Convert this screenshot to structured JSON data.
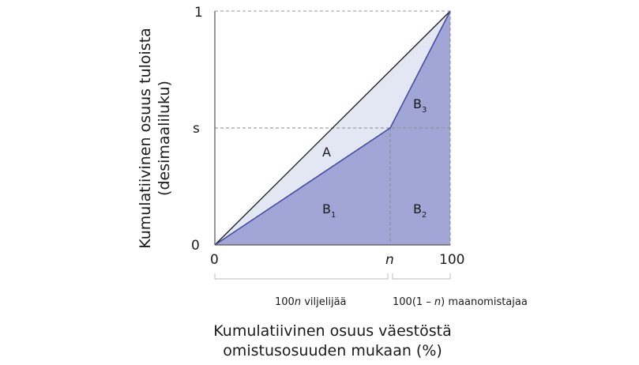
{
  "y_axis": {
    "title_line1": "Kumulatiivinen osuus tuloista",
    "title_line2": "(desimaaliluku)",
    "ticks": [
      "0",
      "s",
      "1"
    ]
  },
  "x_axis": {
    "title_line1": "Kumulatiivinen osuus väestöstä",
    "title_line2": "omistusosuuden mukaan (%)",
    "ticks": [
      "0",
      "n",
      "100"
    ]
  },
  "regions": {
    "a": "A",
    "b1_main": "B",
    "b1_sub": "1",
    "b2_main": "B",
    "b2_sub": "2",
    "b3_main": "B",
    "b3_sub": "3"
  },
  "brackets": {
    "workers": {
      "prefix": "100",
      "var": "n",
      "suffix": " viljelijää"
    },
    "landowners": {
      "prefix": "100(1 – ",
      "var": "n",
      "suffix": ") maanomistajaa"
    }
  },
  "colors": {
    "equality_line": "#1a1a1a",
    "lorenz_line": "#3d4a9e",
    "area_a_fill": "#e3e6f3",
    "area_b_fill": "#a1a6d6",
    "guide_dashes": "#9a9a9a",
    "axis": "#555555"
  }
}
